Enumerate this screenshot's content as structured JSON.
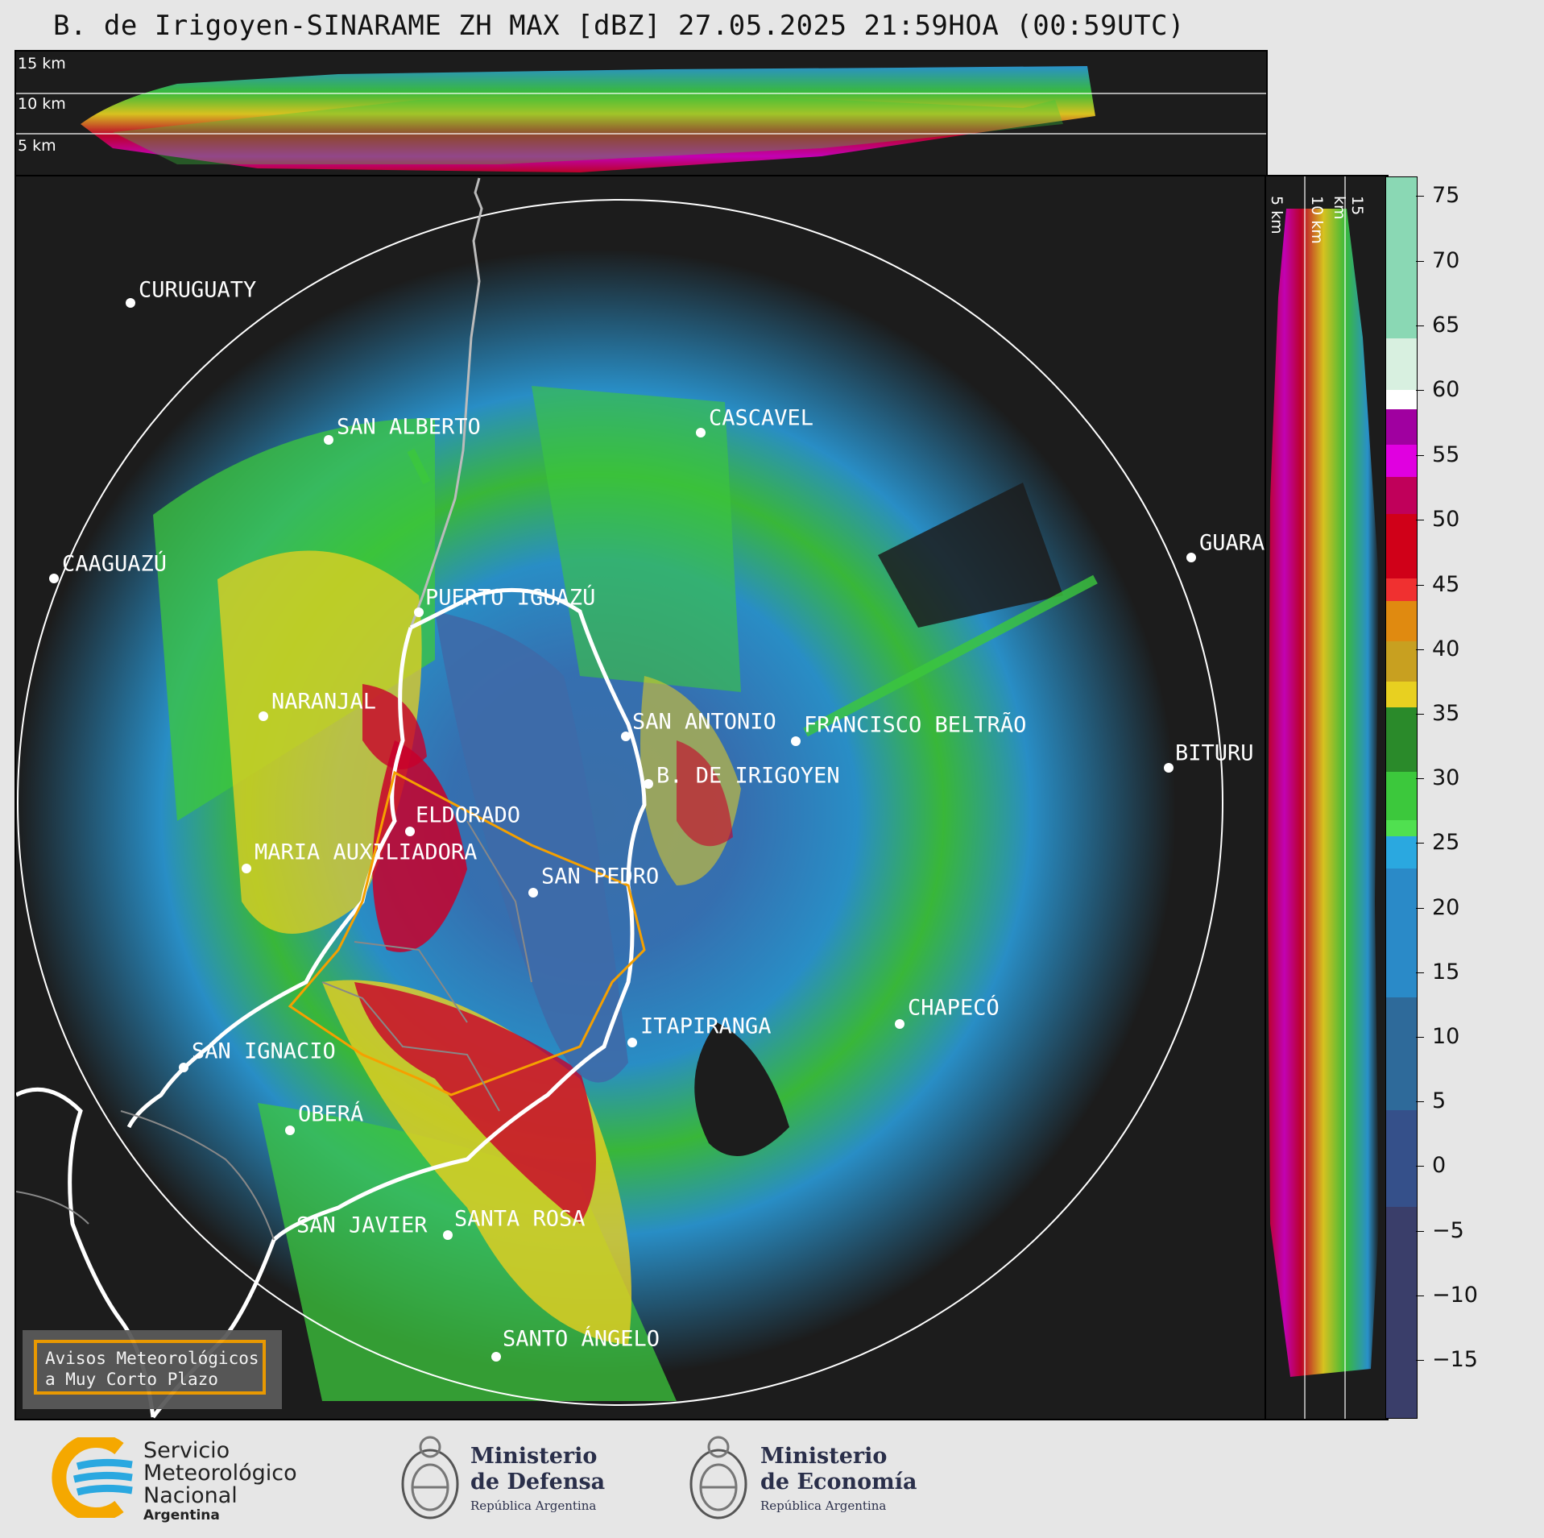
{
  "title": "B. de Irigoyen-SINARAME ZH MAX [dBZ] 27.05.2025 21:59HOA (00:59UTC)",
  "top_panel": {
    "altitude_labels": [
      "15 km",
      "10 km",
      "5 km"
    ]
  },
  "side_panel": {
    "altitude_labels": [
      "5 km",
      "10 km",
      "15 km"
    ]
  },
  "colorbar": {
    "unit": "dBZ",
    "ticks": [
      "75",
      "70",
      "65",
      "60",
      "55",
      "50",
      "45",
      "40",
      "35",
      "30",
      "25",
      "20",
      "15",
      "10",
      "5",
      "0",
      "−5",
      "−10",
      "−15"
    ],
    "range": [
      -20,
      77
    ]
  },
  "cities": [
    {
      "name": "CURUGUATY"
    },
    {
      "name": "SAN ALBERTO"
    },
    {
      "name": "CASCAVEL"
    },
    {
      "name": "CAAGUAZÚ"
    },
    {
      "name": "GUARA"
    },
    {
      "name": "PUERTO IGUAZÚ"
    },
    {
      "name": "NARANJAL"
    },
    {
      "name": "SAN ANTONIO"
    },
    {
      "name": "FRANCISCO BELTRÃO"
    },
    {
      "name": "BITURU"
    },
    {
      "name": "B. DE IRIGOYEN"
    },
    {
      "name": "ELDORADO"
    },
    {
      "name": "MARIA AUXILIADORA"
    },
    {
      "name": "SAN PEDRO"
    },
    {
      "name": "CHAPECÓ"
    },
    {
      "name": "ITAPIRANGA"
    },
    {
      "name": "SAN IGNACIO"
    },
    {
      "name": "OBERÁ"
    },
    {
      "name": "SAN JAVIER"
    },
    {
      "name": "SANTA ROSA"
    },
    {
      "name": "SANTO ÁNGELO"
    }
  ],
  "legend": {
    "line1": "Avisos Meteorológicos",
    "line2": "a Muy Corto Plazo"
  },
  "logos": {
    "smn": {
      "line1": "Servicio",
      "line2": "Meteorológico",
      "line3": "Nacional",
      "line4": "Argentina"
    },
    "defensa": {
      "line1": "Ministerio",
      "line2": "de Defensa",
      "line3": "República Argentina"
    },
    "economia": {
      "line1": "Ministerio",
      "line2": "de Economía",
      "line3": "República Argentina"
    }
  },
  "colors": {
    "strong": "#c8002a",
    "moderate": "#e8d020",
    "light": "#3cc83c",
    "weak": "#2a9ad8",
    "clear": "#1c1c1c",
    "alert": "#f5a000"
  }
}
